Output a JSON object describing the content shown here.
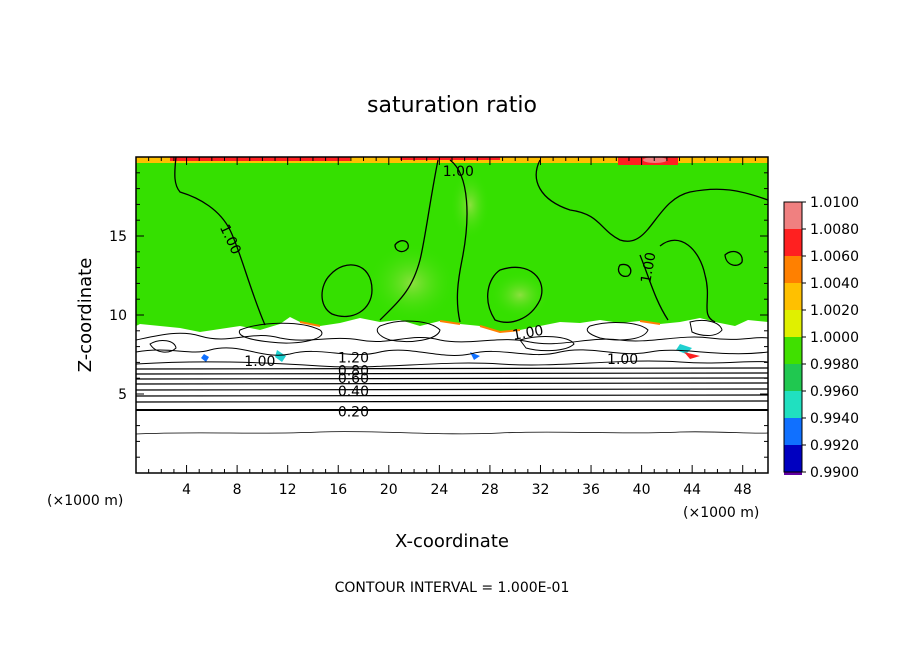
{
  "chart_data": {
    "type": "heatmap",
    "title": "saturation ratio",
    "xlabel": "X-coordinate",
    "ylabel": "Z-coordinate",
    "x_unit": "(×1000 m)",
    "z_unit": "(×1000 m)",
    "xlim": [
      0,
      50
    ],
    "ylim": [
      0,
      20
    ],
    "x_ticks": [
      "4",
      "8",
      "12",
      "16",
      "20",
      "24",
      "28",
      "32",
      "36",
      "40",
      "44",
      "48"
    ],
    "y_ticks": [
      "5",
      "10",
      "15"
    ],
    "footer": "CONTOUR INTERVAL = 1.000E-01",
    "colorbar": {
      "labels": [
        "1.0100",
        "1.0080",
        "1.0060",
        "1.0040",
        "1.0020",
        "1.0000",
        "0.9980",
        "0.9960",
        "0.9940",
        "0.9920",
        "0.9900"
      ],
      "colors": [
        "#f08080",
        "#ff2020",
        "#ff8000",
        "#ffc000",
        "#e0f000",
        "#40e000",
        "#20c850",
        "#20e0c0",
        "#1070ff",
        "#0000c0",
        "#6000a0"
      ]
    },
    "contour_labels": [
      {
        "text": "1.00",
        "x": 25.5,
        "z": 19.1
      },
      {
        "text": "1.00",
        "x": 7.5,
        "z": 14.8
      },
      {
        "text": "1.00",
        "x": 40.5,
        "z": 13.0
      },
      {
        "text": "1.00",
        "x": 31.0,
        "z": 8.9
      },
      {
        "text": "1.00",
        "x": 9.8,
        "z": 7.1
      },
      {
        "text": "1.00",
        "x": 38.5,
        "z": 7.2
      },
      {
        "text": "1.20",
        "x": 17.2,
        "z": 7.3
      },
      {
        "text": "0.80",
        "x": 17.2,
        "z": 6.5
      },
      {
        "text": "0.60",
        "x": 17.2,
        "z": 6.0
      },
      {
        "text": "0.40",
        "x": 17.2,
        "z": 5.2
      },
      {
        "text": "0.20",
        "x": 17.2,
        "z": 3.9
      }
    ],
    "moist_layer_top_z": 9.5,
    "field_background_value": 1.0
  }
}
